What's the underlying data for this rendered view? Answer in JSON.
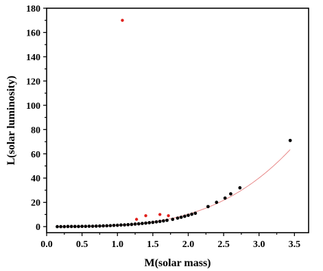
{
  "chart_data": {
    "type": "scatter",
    "title": "",
    "xlabel": "M(solar mass)",
    "ylabel": "L(solar luminosity)",
    "xlim": [
      0.0,
      3.7
    ],
    "ylim": [
      -5,
      180
    ],
    "xticks": [
      0.0,
      0.5,
      1.0,
      1.5,
      2.0,
      2.5,
      3.0,
      3.5
    ],
    "xtick_labels": [
      "0.0",
      "0.5",
      "1.0",
      "1.5",
      "2.0",
      "2.5",
      "3.0",
      "3.5"
    ],
    "yticks": [
      0,
      20,
      40,
      60,
      80,
      100,
      120,
      140,
      160,
      180
    ],
    "ytick_labels": [
      "0",
      "20",
      "40",
      "60",
      "80",
      "100",
      "120",
      "140",
      "160",
      "180"
    ],
    "grid": false,
    "legend": "none",
    "series": [
      {
        "color": "#000000",
        "marker": "circle",
        "points": [
          [
            0.15,
            0.0
          ],
          [
            0.2,
            0.0
          ],
          [
            0.25,
            0.0
          ],
          [
            0.3,
            0.1
          ],
          [
            0.35,
            0.1
          ],
          [
            0.4,
            0.1
          ],
          [
            0.45,
            0.1
          ],
          [
            0.5,
            0.2
          ],
          [
            0.55,
            0.2
          ],
          [
            0.6,
            0.3
          ],
          [
            0.65,
            0.3
          ],
          [
            0.7,
            0.4
          ],
          [
            0.75,
            0.5
          ],
          [
            0.8,
            0.6
          ],
          [
            0.85,
            0.7
          ],
          [
            0.9,
            0.8
          ],
          [
            0.95,
            1.0
          ],
          [
            1.0,
            1.1
          ],
          [
            1.05,
            1.3
          ],
          [
            1.1,
            1.4
          ],
          [
            1.15,
            1.6
          ],
          [
            1.2,
            1.8
          ],
          [
            1.25,
            2.1
          ],
          [
            1.3,
            2.3
          ],
          [
            1.35,
            2.6
          ],
          [
            1.4,
            2.9
          ],
          [
            1.45,
            3.2
          ],
          [
            1.5,
            3.5
          ],
          [
            1.55,
            3.9
          ],
          [
            1.6,
            4.3
          ],
          [
            1.65,
            4.7
          ],
          [
            1.7,
            5.2
          ],
          [
            1.78,
            6.0
          ],
          [
            1.85,
            7.0
          ],
          [
            1.9,
            7.7
          ],
          [
            1.95,
            8.5
          ],
          [
            2.0,
            9.3
          ],
          [
            2.05,
            10.2
          ],
          [
            2.1,
            11.0
          ],
          [
            2.28,
            16.5
          ],
          [
            2.4,
            20.0
          ],
          [
            2.52,
            23.5
          ],
          [
            2.6,
            27.0
          ],
          [
            2.73,
            32.0
          ],
          [
            3.44,
            71.0
          ]
        ]
      },
      {
        "color": "#e0201c",
        "marker": "circle",
        "points": [
          [
            1.07,
            170.0
          ],
          [
            1.27,
            6.0
          ],
          [
            1.4,
            9.0
          ],
          [
            1.6,
            10.0
          ],
          [
            1.72,
            9.0
          ]
        ]
      }
    ],
    "fit_line": {
      "color": "#e88888",
      "equation": "L = M^3.36",
      "x_range": [
        0.15,
        3.44
      ]
    }
  }
}
